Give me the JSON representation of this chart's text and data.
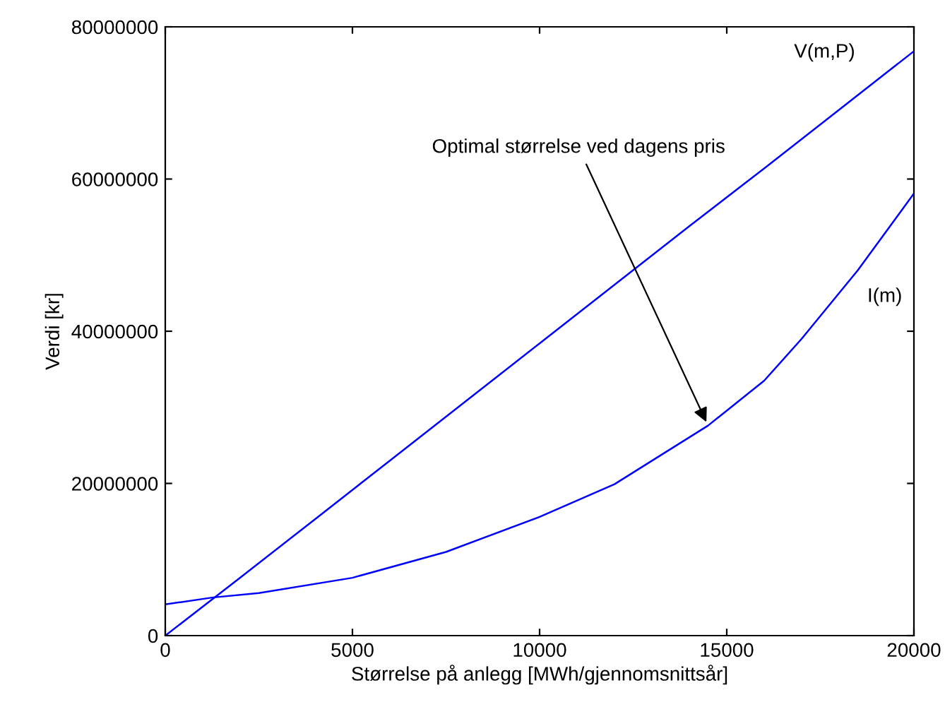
{
  "chart_data": {
    "type": "line",
    "xlabel": "Størrelse på anlegg [MWh/gjennomsnittsår]",
    "ylabel": "Verdi [kr]",
    "xlim": [
      0,
      20000
    ],
    "xticks": [
      0,
      5000,
      10000,
      15000,
      20000
    ],
    "ylim": [
      0,
      80000000
    ],
    "yticks": [
      0,
      20000000,
      40000000,
      60000000,
      80000000
    ],
    "grid": false,
    "legend": false,
    "marker": "none",
    "line_style": "solid",
    "series": [
      {
        "name": "V(m,P)",
        "color": "#0000ff",
        "x": [
          0,
          2000,
          4000,
          6000,
          8000,
          10000,
          12000,
          14000,
          16000,
          18000,
          20000
        ],
        "values": [
          0,
          7600000,
          15300000,
          23000000,
          30700000,
          38400000,
          46100000,
          53800000,
          61400000,
          69100000,
          76800000
        ]
      },
      {
        "name": "I(m)",
        "color": "#0000ff",
        "x": [
          0,
          1250,
          2500,
          5000,
          7500,
          10000,
          12000,
          14500,
          16000,
          17000,
          18500,
          20000
        ],
        "values": [
          4100000,
          5000000,
          5600000,
          7600000,
          11000000,
          15600000,
          19900000,
          27600000,
          33500000,
          39000000,
          48000000,
          58100000
        ]
      }
    ],
    "annotations": [
      {
        "text": "Optimal størrelse ved dagens pris",
        "x": 14500,
        "y": 27600000
      }
    ]
  }
}
